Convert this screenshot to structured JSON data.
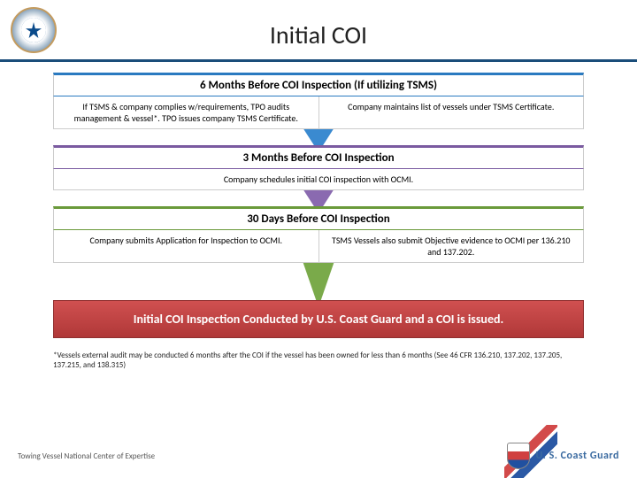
{
  "header": {
    "title": "Initial COI"
  },
  "stages": [
    {
      "title": "6 Months Before COI Inspection (If utilizing TSMS)",
      "cells": [
        "If TSMS & company complies w/requirements, TPO audits management & vessel*.  TPO issues company TSMS Certificate.",
        "Company maintains list of vessels under TSMS Certificate."
      ]
    },
    {
      "title": "3 Months Before COI Inspection",
      "cells": [
        "Company schedules initial COI inspection with OCMI."
      ]
    },
    {
      "title": "30 Days Before COI Inspection",
      "cells": [
        "Company submits Application for Inspection to OCMI.",
        "TSMS Vessels also submit Objective evidence to OCMI per 136.210 and 137.202."
      ]
    }
  ],
  "final": "Initial COI Inspection Conducted by U.S. Coast Guard and a COI is issued.",
  "footnote": "*Vessels external audit may be conducted 6 months after the COI if the vessel has been owned for less than 6 months (See 46 CFR 136.210, 137.202, 137.205, 137.215, and 138.315)",
  "footer": {
    "left": "Towing Vessel National Center of Expertise",
    "right": "U. S. Coast Guard"
  },
  "style": {
    "stage_colors": [
      "#2a7ac0",
      "#7a5aa0",
      "#6a9a3a"
    ],
    "arrow_colors": [
      "#3a8ad0",
      "#8a6ab0",
      "#7aaa4a"
    ],
    "final_bg": "#c04040",
    "title_fontsize": 28,
    "stage_title_fontsize": 13,
    "body_fontsize": 10,
    "header_rule": "#1a4d7a"
  }
}
